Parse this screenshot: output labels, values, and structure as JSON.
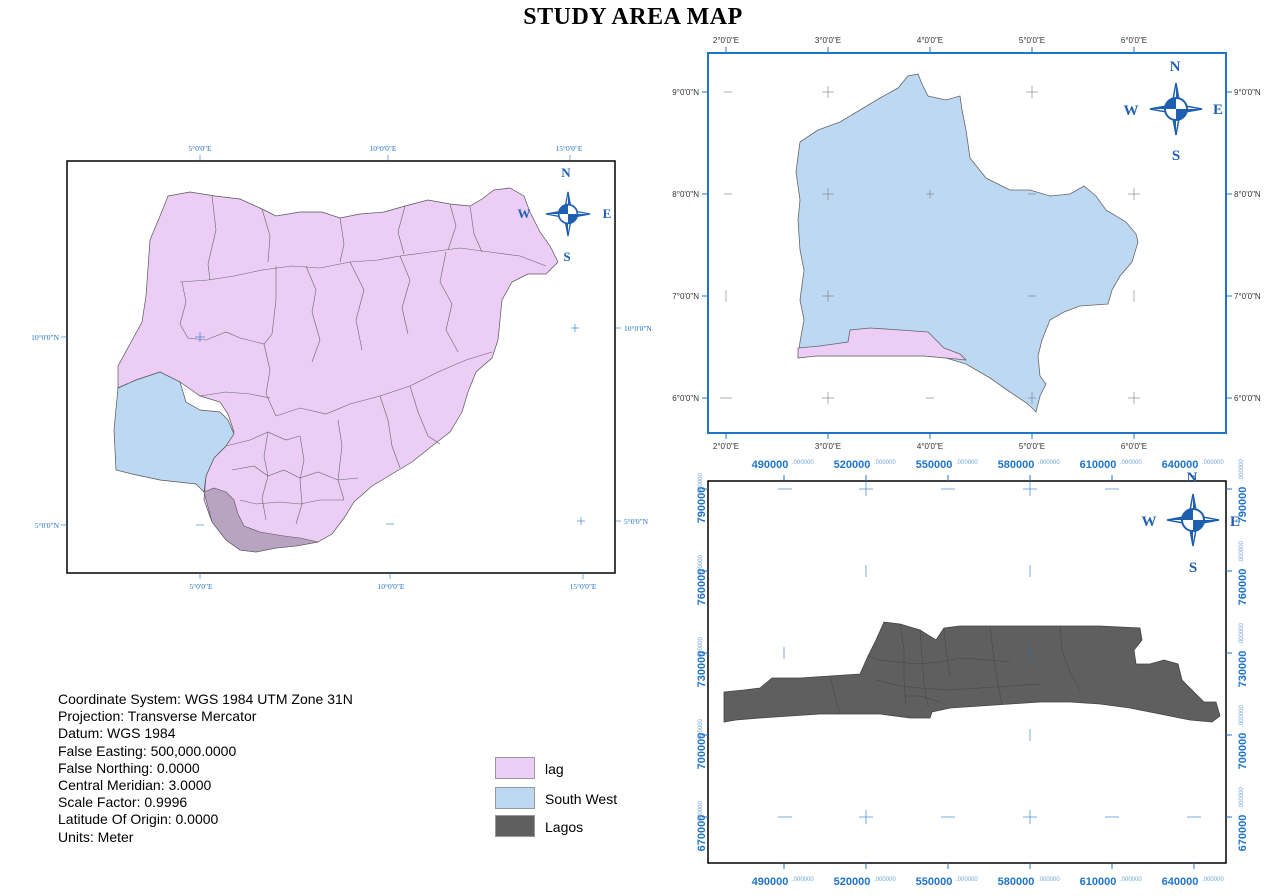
{
  "title": "STUDY AREA MAP",
  "map_nigeria": {
    "top_ticks": [
      "5°0'0\"E",
      "10°0'0\"E",
      "15°0'0\"E"
    ],
    "bottom_ticks": [
      "5°0'0\"E",
      "10°0'0\"E",
      "15°0'0\"E"
    ],
    "left_ticks": [
      "10°0'0\"N",
      "5°0'0\"N"
    ],
    "right_ticks": [
      "10°0'0\"N",
      "5°0'0\"N"
    ]
  },
  "map_southwest": {
    "top_ticks": [
      "2°0'0\"E",
      "3°0'0\"E",
      "4°0'0\"E",
      "5°0'0\"E",
      "6°0'0\"E"
    ],
    "bottom_ticks": [
      "2°0'0\"E",
      "3°0'0\"E",
      "4°0'0\"E",
      "5°0'0\"E",
      "6°0'0\"E"
    ],
    "left_ticks": [
      "9°0'0\"N",
      "8°0'0\"N",
      "7°0'0\"N",
      "6°0'0\"N"
    ],
    "right_ticks": [
      "9°0'0\"N",
      "8°0'0\"N",
      "7°0'0\"N",
      "6°0'0\"N"
    ]
  },
  "map_lagos": {
    "x_ticks": [
      "490000",
      "520000",
      "550000",
      "580000",
      "610000",
      "640000"
    ],
    "y_ticks": [
      "790000",
      "760000",
      "730000",
      "700000",
      "670000"
    ],
    "tick_suffix": ".000000"
  },
  "compass": {
    "n": "N",
    "s": "S",
    "e": "E",
    "w": "W"
  },
  "info_lines": [
    "Coordinate System: WGS 1984 UTM Zone 31N",
    "Projection: Transverse Mercator",
    "Datum: WGS 1984",
    "False Easting: 500,000.0000",
    "False Northing: 0.0000",
    "Central Meridian: 3.0000",
    "Scale Factor: 0.9996",
    "Latitude Of Origin: 0.0000",
    "Units: Meter"
  ],
  "legend": [
    {
      "label": "lag",
      "color": "#eccdf5"
    },
    {
      "label": "South West",
      "color": "#bdd8f2"
    },
    {
      "label": "Lagos",
      "color": "#5f5f5f"
    }
  ],
  "colors": {
    "graticule": "#1f74c9",
    "frame": "#000000",
    "blue_frame": "#1f74c9"
  }
}
